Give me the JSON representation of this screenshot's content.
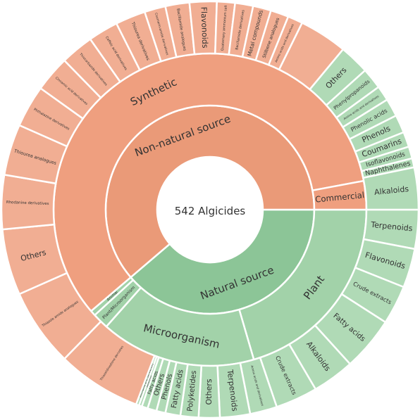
{
  "chart_data": {
    "type": "sunburst",
    "center_label": "542 Algicides",
    "colors": {
      "natural_inner": "#8cc597",
      "natural_mid": "#a2d2a9",
      "natural_outer": "#b0dab6",
      "nonnatural_inner": "#ea9a78",
      "nonnatural_mid": "#ef9f7f",
      "nonnatural_outer": "#f1ae93"
    },
    "rings": {
      "inner": [
        {
          "label": "Natural source",
          "value": 210,
          "group": "natural"
        },
        {
          "label": "Non-natural source",
          "value": 332,
          "group": "nonnatural"
        }
      ],
      "middle": [
        {
          "label": "Plant",
          "value": 111,
          "group": "natural"
        },
        {
          "label": "Microorganism",
          "value": 87,
          "group": "natural"
        },
        {
          "label": "Plant/Microorganism",
          "value": 9,
          "group": "natural"
        },
        {
          "label": "Animal",
          "value": 3,
          "group": "natural"
        },
        {
          "label": "Synthetic",
          "value": 316,
          "group": "nonnatural"
        },
        {
          "label": "Commercial",
          "value": 16,
          "group": "nonnatural"
        }
      ],
      "outer": [
        {
          "label": "Terpenoids",
          "value": 13,
          "group": "natural"
        },
        {
          "label": "Flavonoids",
          "value": 13,
          "group": "natural"
        },
        {
          "label": "Crude extracts",
          "value": 13,
          "group": "natural"
        },
        {
          "label": "Fatty acids",
          "value": 18,
          "group": "natural"
        },
        {
          "label": "Alkaloids",
          "value": 14,
          "group": "natural"
        },
        {
          "label": "Crude extracts",
          "value": 14,
          "group": "natural"
        },
        {
          "label": "Amino acids and derivatives",
          "value": 9,
          "group": "natural"
        },
        {
          "label": "Terpenoids",
          "value": 10,
          "group": "natural"
        },
        {
          "label": "Others",
          "value": 7,
          "group": "natural"
        },
        {
          "label": "Polyketides",
          "value": 6,
          "group": "natural"
        },
        {
          "label": "Fatty acids",
          "value": 5,
          "group": "natural"
        },
        {
          "label": "Phenols",
          "value": 3,
          "group": "natural"
        },
        {
          "label": "Others",
          "value": 3,
          "group": "natural"
        },
        {
          "label": "Fatty acids",
          "value": 2,
          "group": "natural"
        },
        {
          "label": "Alkaloids",
          "value": 1,
          "group": "natural"
        },
        {
          "label": "Ammonia and derivatives",
          "value": 1,
          "group": "natural"
        },
        {
          "label": "Thiazolidinedione derivates",
          "value": 28,
          "group": "nonnatural"
        },
        {
          "label": "Thiazole amide analogues",
          "value": 26,
          "group": "nonnatural"
        },
        {
          "label": "Others",
          "value": 22,
          "group": "nonnatural"
        },
        {
          "label": "Rhodanine derivatives",
          "value": 18,
          "group": "nonnatural"
        },
        {
          "label": "Thiourea analogues",
          "value": 17,
          "group": "nonnatural"
        },
        {
          "label": "Phthalazine derivatives",
          "value": 14,
          "group": "nonnatural"
        },
        {
          "label": "Cinnamic acid derivatives",
          "value": 12,
          "group": "nonnatural"
        },
        {
          "label": "Thiocarbazide derivatives",
          "value": 11,
          "group": "nonnatural"
        },
        {
          "label": "Caffeic acid derivatives",
          "value": 10,
          "group": "nonnatural"
        },
        {
          "label": "Thiourea derivatives",
          "value": 10,
          "group": "nonnatural"
        },
        {
          "label": "Coumarin-amide derivatives",
          "value": 7,
          "group": "nonnatural"
        },
        {
          "label": "Bacillamide analogues",
          "value": 8,
          "group": "nonnatural"
        },
        {
          "label": "Flavonoids",
          "value": 9,
          "group": "nonnatural"
        },
        {
          "label": "Quaternary ammonium salt",
          "value": 6,
          "group": "nonnatural"
        },
        {
          "label": "Bacillamide derivatives",
          "value": 6,
          "group": "nonnatural"
        },
        {
          "label": "Metal compounds",
          "value": 6,
          "group": "nonnatural"
        },
        {
          "label": "Stilbene analogues",
          "value": 6,
          "group": "nonnatural"
        },
        {
          "label": "Amino acids and derivatives",
          "value": 5,
          "group": "nonnatural"
        },
        {
          "label": "",
          "value": 16,
          "group": "nonnatural"
        },
        {
          "label": "Others",
          "value": 10,
          "group": "natural"
        },
        {
          "label": "Phenylpropanoids",
          "value": 7,
          "group": "natural"
        },
        {
          "label": "Amino acids and derivatives",
          "value": 5,
          "group": "natural"
        },
        {
          "label": "Phenolic acids",
          "value": 6,
          "group": "natural"
        },
        {
          "label": "Phenols",
          "value": 6,
          "group": "natural"
        },
        {
          "label": "Coumarins",
          "value": 5,
          "group": "natural"
        },
        {
          "label": "Isoflavonoids",
          "value": 4,
          "group": "natural"
        },
        {
          "label": "Naphthalenes",
          "value": 3,
          "group": "natural"
        },
        {
          "label": "Alkaloids",
          "value": 14,
          "group": "natural"
        }
      ]
    }
  }
}
